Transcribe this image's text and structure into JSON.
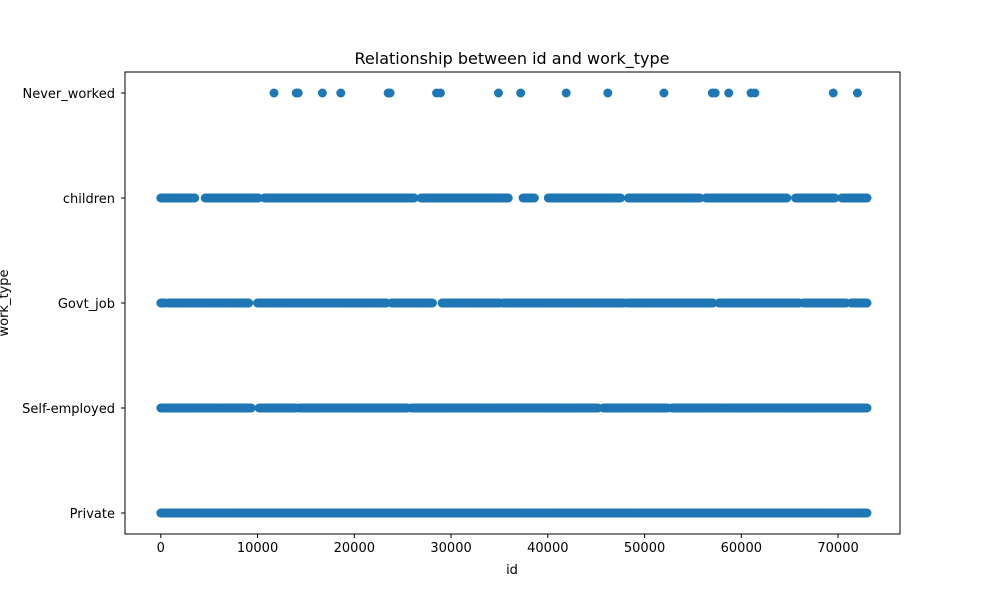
{
  "chart_data": {
    "type": "scatter",
    "title": "Relationship between id and work_type",
    "xlabel": "id",
    "ylabel": "work_type",
    "xlim": [
      -3700,
      76400
    ],
    "x_ticks": [
      0,
      10000,
      20000,
      30000,
      40000,
      50000,
      60000,
      70000
    ],
    "categories": [
      "Private",
      "Self-employed",
      "Govt_job",
      "children",
      "Never_worked"
    ],
    "grid": false,
    "legend": "none",
    "marker_color": "#1f77b4",
    "series": [
      {
        "values": [
          {
            "y": "Never_worked",
            "x": [
              11700,
              14000,
              14200,
              16700,
              18600,
              23500,
              23700,
              28500,
              28900,
              34900,
              37200,
              41900,
              46200,
              52000,
              57000,
              57300,
              58700,
              61000,
              61400,
              69500,
              72000
            ]
          },
          {
            "y": "children",
            "dense_range": [
              0,
              73000
            ],
            "gaps": [
              [
                3600,
                4500
              ],
              [
                10100,
                10700
              ],
              [
                26200,
                26900
              ],
              [
                36000,
                37400
              ],
              [
                38700,
                40000
              ],
              [
                47600,
                48300
              ],
              [
                55800,
                56300
              ],
              [
                64800,
                65600
              ],
              [
                69700,
                70300
              ]
            ]
          },
          {
            "y": "Govt_job",
            "dense_range": [
              0,
              73000
            ],
            "gaps": [
              [
                500,
                800
              ],
              [
                9100,
                9900
              ],
              [
                23400,
                23800
              ],
              [
                28100,
                29000
              ],
              [
                35100,
                35300
              ],
              [
                47900,
                48200
              ],
              [
                57100,
                57600
              ],
              [
                66000,
                66400
              ],
              [
                70900,
                71300
              ]
            ]
          },
          {
            "y": "Self-employed",
            "dense_range": [
              0,
              73000
            ],
            "gaps": [
              [
                9400,
                10100
              ],
              [
                14000,
                14300
              ],
              [
                25500,
                25900
              ],
              [
                45200,
                45700
              ],
              [
                52400,
                52800
              ]
            ]
          },
          {
            "y": "Private",
            "dense_range": [
              0,
              73000
            ],
            "gaps": []
          }
        ]
      }
    ]
  }
}
